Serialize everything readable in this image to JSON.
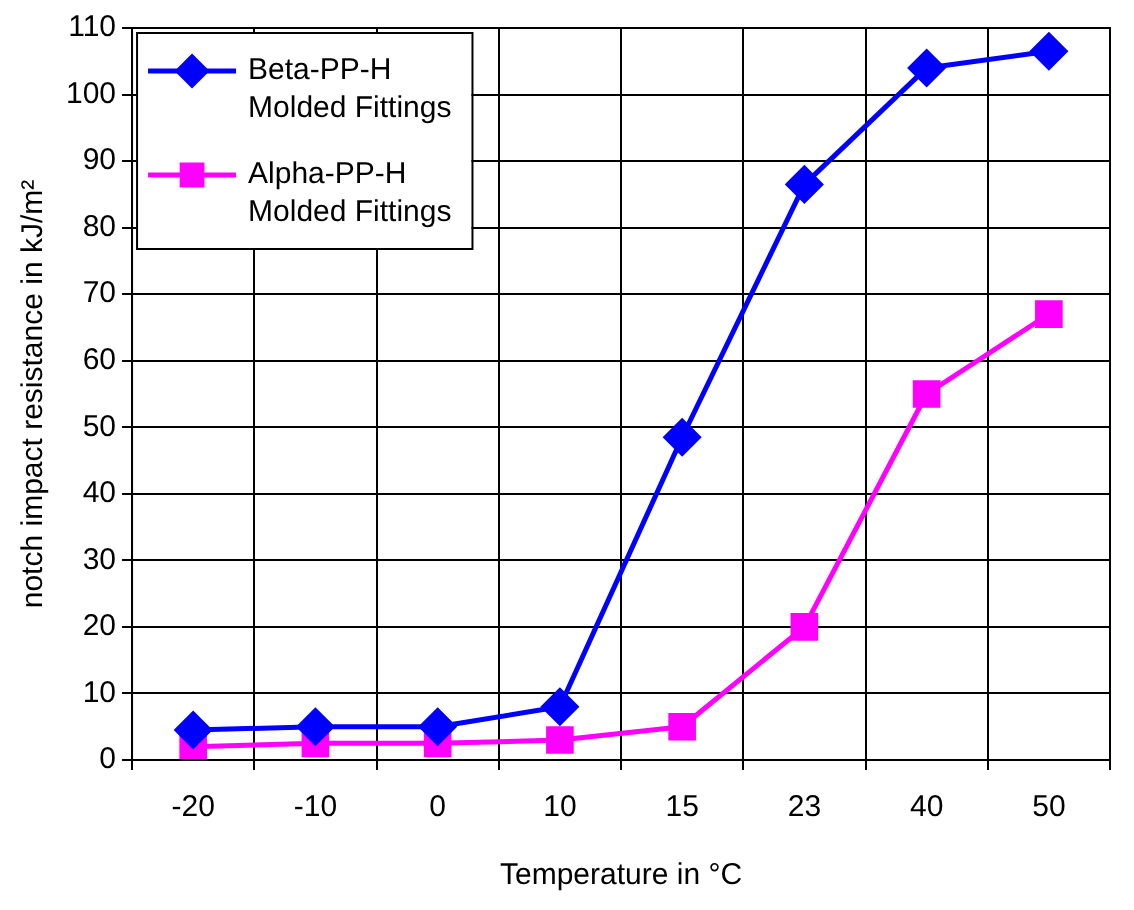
{
  "chart_data": {
    "type": "line",
    "xlabel": "Temperature in °C",
    "ylabel": "notch impact resistance in kJ/m²",
    "categories": [
      "-20",
      "-10",
      "0",
      "10",
      "15",
      "23",
      "40",
      "50"
    ],
    "series": [
      {
        "name": "Beta-PP-H Molded Fittings",
        "color": "#0000ff",
        "marker": "diamond",
        "values": [
          4.5,
          5,
          5,
          8,
          48.5,
          86.5,
          104,
          106.5
        ]
      },
      {
        "name": "Alpha-PP-H Molded Fittings",
        "color": "#ff00ff",
        "marker": "square",
        "values": [
          2,
          2.5,
          2.5,
          3,
          5,
          20,
          55,
          67
        ]
      }
    ],
    "ylim": [
      0,
      110
    ],
    "yticks": [
      0,
      10,
      20,
      30,
      40,
      50,
      60,
      70,
      80,
      90,
      100,
      110
    ],
    "grid": true,
    "legend": "top left",
    "line_style": "solid"
  }
}
